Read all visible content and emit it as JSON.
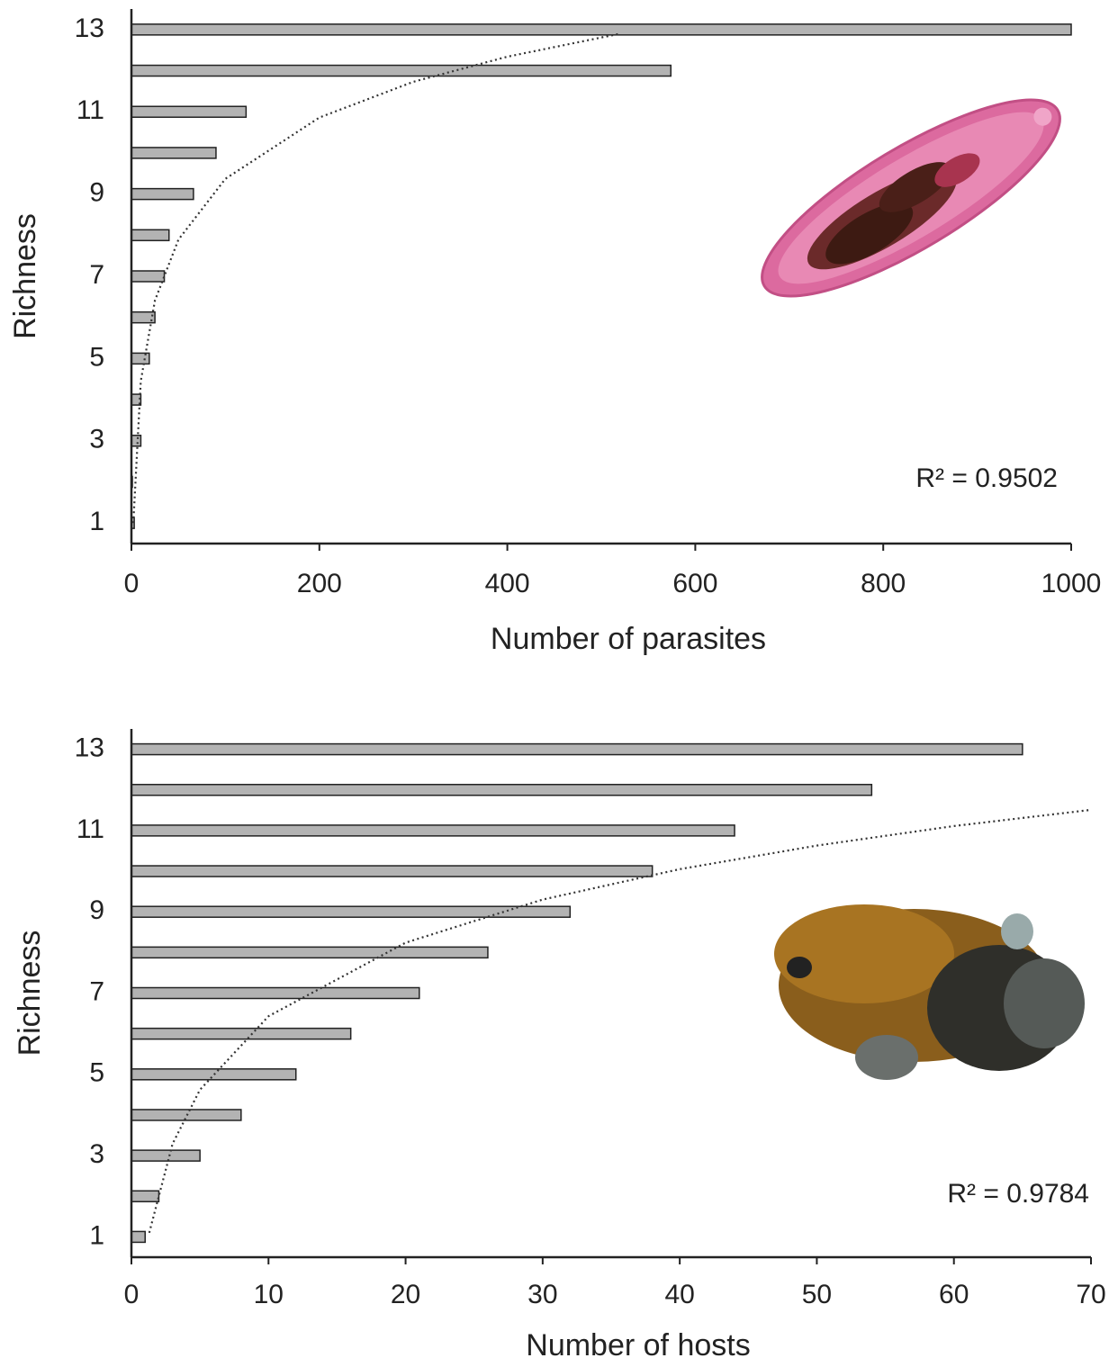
{
  "chart_data": [
    {
      "type": "bar",
      "orientation": "horizontal",
      "x_label": "Number of parasites",
      "y_label": "Richness",
      "categories": [
        "1",
        null,
        "3",
        null,
        "5",
        null,
        "7",
        null,
        "9",
        null,
        "11",
        null,
        "13"
      ],
      "values": [
        3,
        1,
        10,
        10,
        19,
        25,
        35,
        40,
        66,
        90,
        122,
        574,
        1000
      ],
      "color": "#b3b3b3",
      "xlim": [
        0,
        1000
      ],
      "xticks": [
        0,
        200,
        400,
        600,
        800,
        1000
      ],
      "trend": {
        "x": [
          2,
          10,
          25,
          50,
          100,
          200,
          300,
          400,
          520
        ],
        "y": [
          1.0,
          4.45,
          6.41,
          7.89,
          9.37,
          10.86,
          11.73,
          12.34,
          12.9
        ]
      },
      "annotation": "R² = 0.9502"
    },
    {
      "type": "bar",
      "orientation": "horizontal",
      "x_label": "Number of hosts",
      "y_label": "Richness",
      "categories": [
        "1",
        null,
        "3",
        null,
        "5",
        null,
        "7",
        null,
        "9",
        null,
        "11",
        null,
        "13"
      ],
      "values": [
        1,
        2,
        5,
        8,
        12,
        16,
        21,
        26,
        32,
        38,
        44,
        54,
        65
      ],
      "color": "#b3b3b3",
      "xlim": [
        0,
        70
      ],
      "xticks": [
        0,
        10,
        20,
        30,
        40,
        50,
        60,
        70
      ],
      "trend": {
        "x": [
          1.3,
          3,
          5,
          10,
          20,
          30,
          40,
          50,
          60,
          70
        ],
        "y": [
          1.1,
          3.29,
          4.62,
          6.43,
          8.24,
          9.3,
          10.05,
          10.63,
          11.11,
          11.51
        ]
      },
      "annotation": "R² = 0.9784"
    }
  ]
}
